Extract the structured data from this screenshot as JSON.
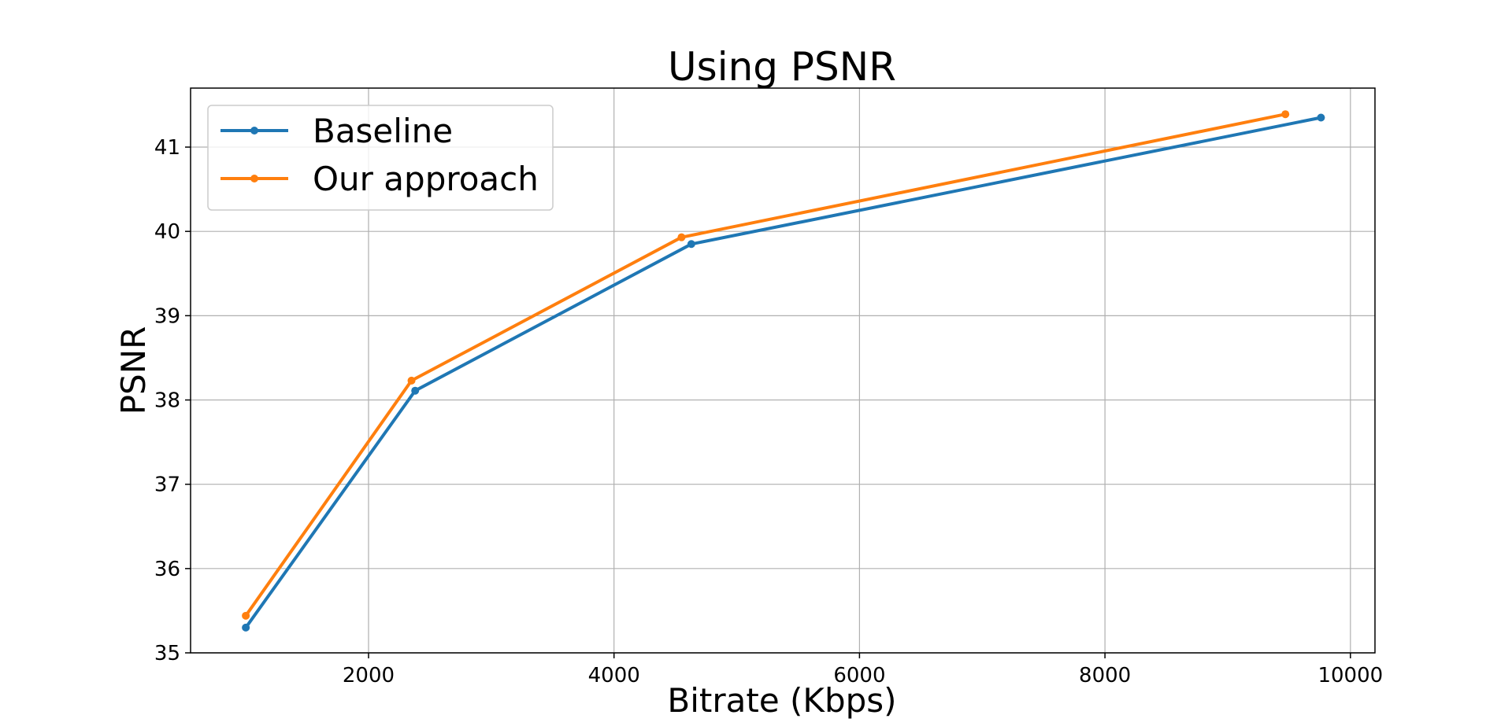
{
  "chart_data": {
    "type": "line",
    "title": "Using PSNR",
    "xlabel": "Bitrate (Kbps)",
    "ylabel": "PSNR",
    "xlim": [
      550,
      10200
    ],
    "ylim": [
      35,
      41.7
    ],
    "xticks": [
      2000,
      4000,
      6000,
      8000,
      10000
    ],
    "yticks": [
      35,
      36,
      37,
      38,
      39,
      40,
      41
    ],
    "grid": true,
    "legend_position": "upper-left",
    "series": [
      {
        "name": "Baseline",
        "color": "#1f77b4",
        "x": [
          1000,
          2380,
          4630,
          9760
        ],
        "y": [
          35.3,
          38.11,
          39.85,
          41.35
        ]
      },
      {
        "name": "Our approach",
        "color": "#ff7f0e",
        "x": [
          1000,
          2350,
          4550,
          9470
        ],
        "y": [
          35.44,
          38.23,
          39.93,
          41.39
        ]
      }
    ]
  }
}
